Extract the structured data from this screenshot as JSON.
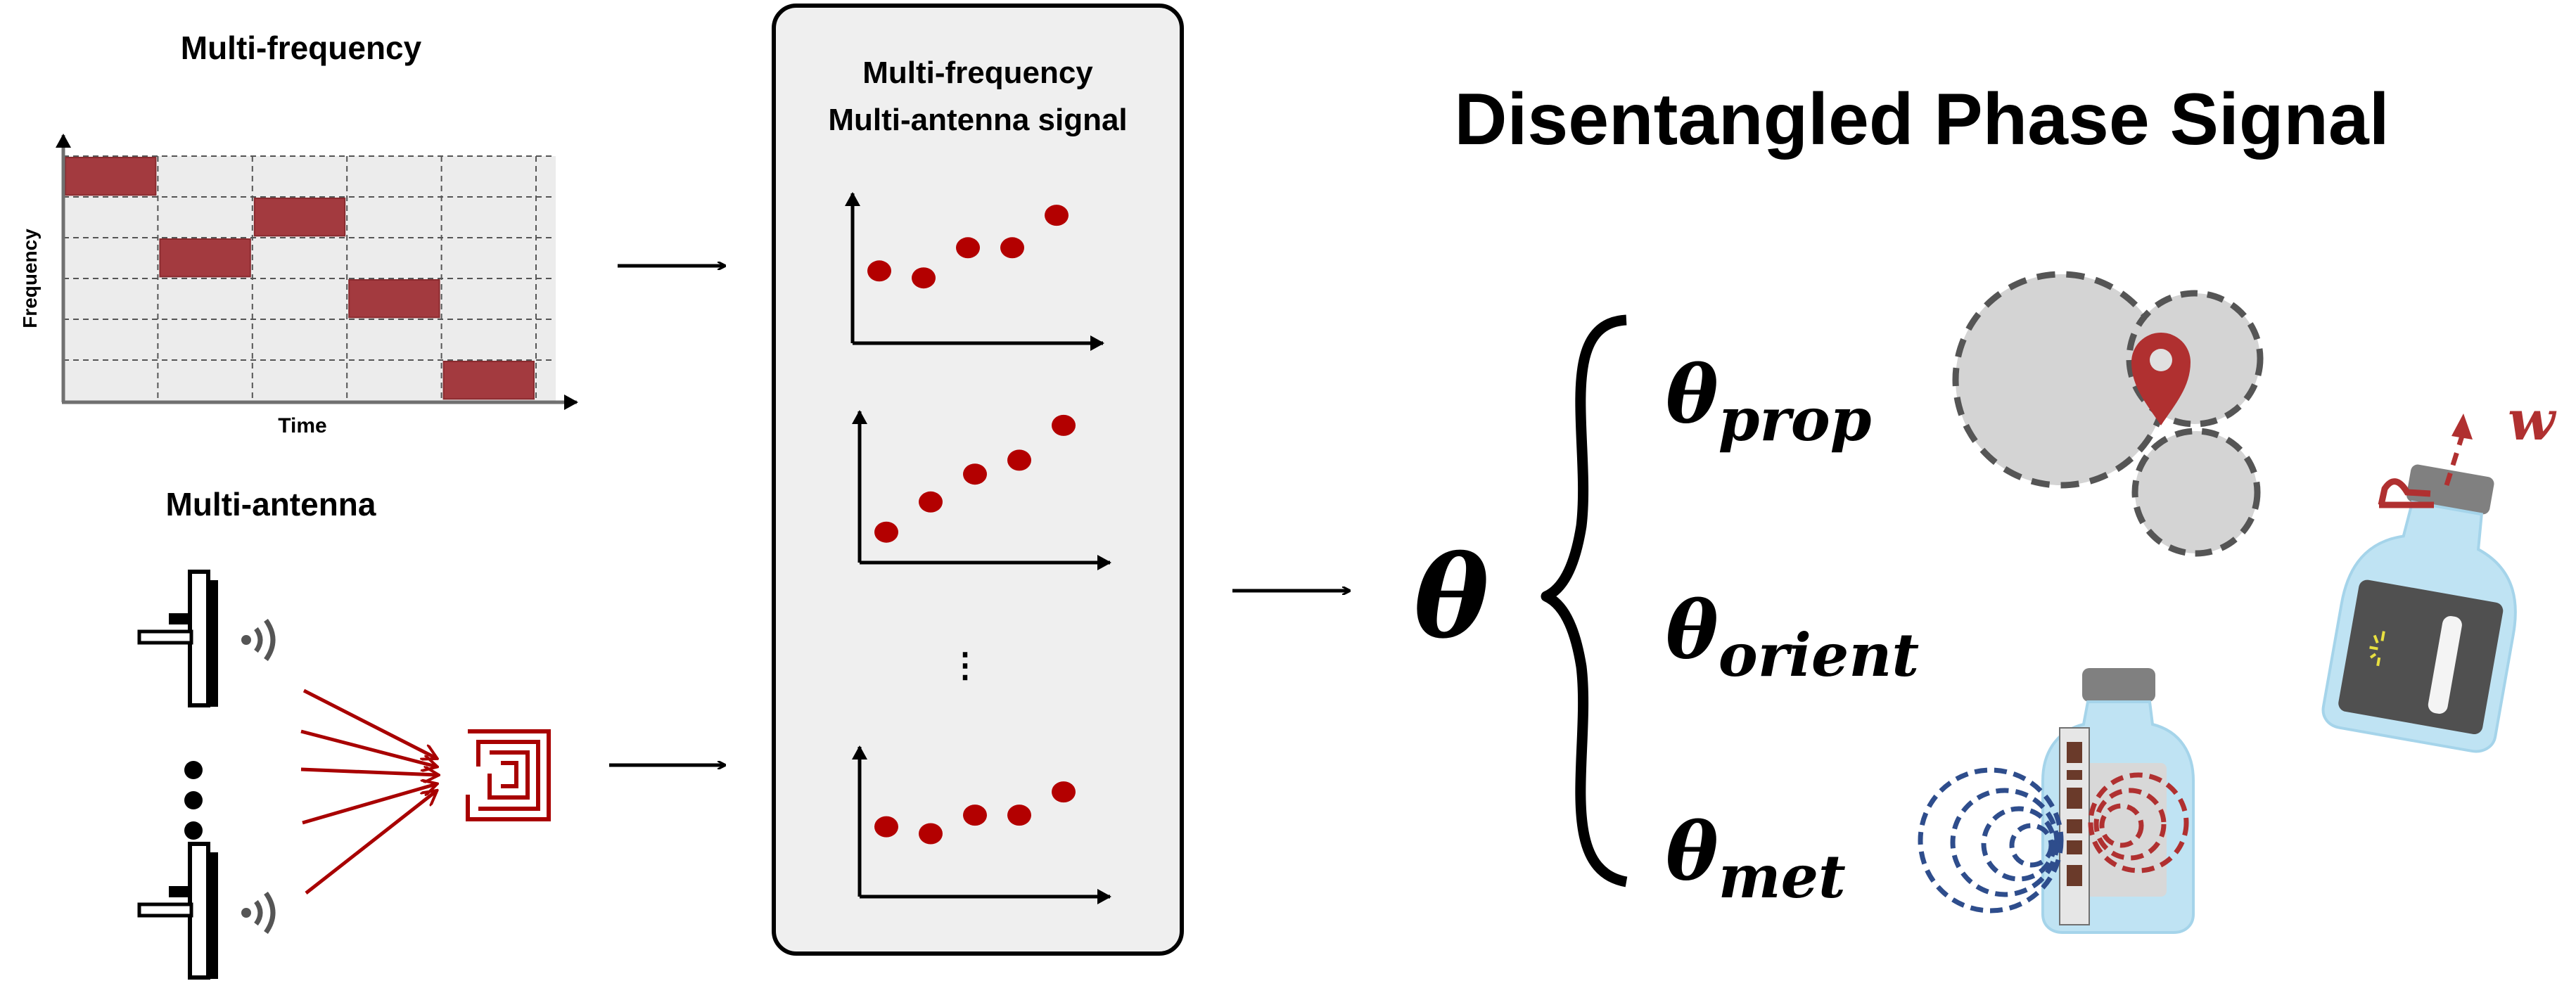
{
  "frequency_panel": {
    "title": "Multi-frequency",
    "ylabel": "Frequency",
    "xlabel": "Time",
    "chart_data": {
      "type": "gantt",
      "grid": true,
      "columns": 5,
      "rows": 6,
      "blocks": [
        {
          "time_slot": 1,
          "frequency_row": 6
        },
        {
          "time_slot": 2,
          "frequency_row": 4
        },
        {
          "time_slot": 3,
          "frequency_row": 5
        },
        {
          "time_slot": 4,
          "frequency_row": 3
        },
        {
          "time_slot": 5,
          "frequency_row": 1
        }
      ],
      "block_color": "#a33a3f"
    }
  },
  "antenna_panel": {
    "title": "Multi-antenna",
    "antenna_count_shown": 2,
    "ellipsis": "⋮",
    "tag_color": "#a80000"
  },
  "signal_box": {
    "title_line1": "Multi-frequency",
    "title_line2": "Multi-antenna signal",
    "ellipsis": "⋮",
    "plots": [
      {
        "points": [
          [
            1,
            2.4
          ],
          [
            2,
            2.1
          ],
          [
            3,
            3.4
          ],
          [
            4,
            3.4
          ],
          [
            5,
            4.8
          ]
        ]
      },
      {
        "points": [
          [
            1,
            0.6
          ],
          [
            2,
            1.9
          ],
          [
            3,
            3.1
          ],
          [
            4,
            3.7
          ],
          [
            5,
            5.2
          ]
        ]
      },
      {
        "points": [
          [
            1,
            2.3
          ],
          [
            2,
            2.0
          ],
          [
            3,
            2.8
          ],
          [
            4,
            2.8
          ],
          [
            5,
            3.8
          ]
        ]
      }
    ],
    "point_color": "#b30000"
  },
  "output": {
    "heading": "Disentangled Phase Signal",
    "theta": "θ",
    "components": [
      {
        "symbol": "θ",
        "subscript": "prop"
      },
      {
        "symbol": "θ",
        "subscript": "orient"
      },
      {
        "symbol": "θ",
        "subscript": "met"
      }
    ],
    "orientation_label": "w",
    "accent_color": "#b03030"
  }
}
